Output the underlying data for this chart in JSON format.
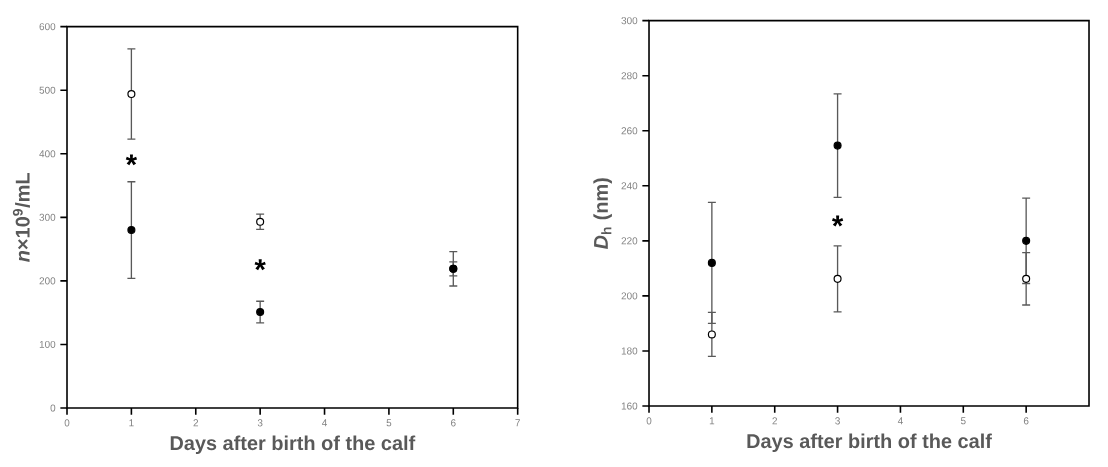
{
  "chart_data": [
    {
      "type": "scatter",
      "xlabel": "Days after birth of the calf",
      "ylabel": "*n*×10$^{9}$/mL",
      "x": [
        1,
        3,
        6
      ],
      "xlim": [
        0,
        7
      ],
      "xticks": [
        0,
        1,
        2,
        3,
        4,
        5,
        6,
        7
      ],
      "ylim": [
        0,
        600
      ],
      "yticks": [
        0,
        100,
        200,
        300,
        400,
        500,
        600
      ],
      "grid": false,
      "series": [
        {
          "color": "#ffffff",
          "values": [
            494,
            293,
            219
          ],
          "errors": [
            71,
            12,
            27
          ]
        },
        {
          "color": "#000000",
          "values": [
            280,
            151,
            219
          ],
          "errors": [
            76,
            17,
            11
          ]
        }
      ],
      "annotations": [
        "*",
        "*"
      ]
    },
    {
      "type": "scatter",
      "xlabel": "Days after birth of the calf",
      "ylabel": "*D*$_{h}$ (nm)",
      "x": [
        1,
        3,
        6
      ],
      "xlim": [
        0,
        7
      ],
      "xticks": [
        0,
        1,
        2,
        3,
        4,
        5,
        6
      ],
      "ylim": [
        160,
        300
      ],
      "yticks": [
        160,
        180,
        200,
        220,
        240,
        260,
        280,
        300
      ],
      "grid": false,
      "series": [
        {
          "color": "#ffffff",
          "values": [
            186,
            206.2,
            206.2
          ],
          "errors": [
            8,
            12,
            9.5
          ]
        },
        {
          "color": "#000000",
          "values": [
            212,
            254.6,
            220
          ],
          "errors": [
            22,
            18.8,
            15.5
          ]
        }
      ],
      "annotations": [
        "*"
      ]
    }
  ]
}
